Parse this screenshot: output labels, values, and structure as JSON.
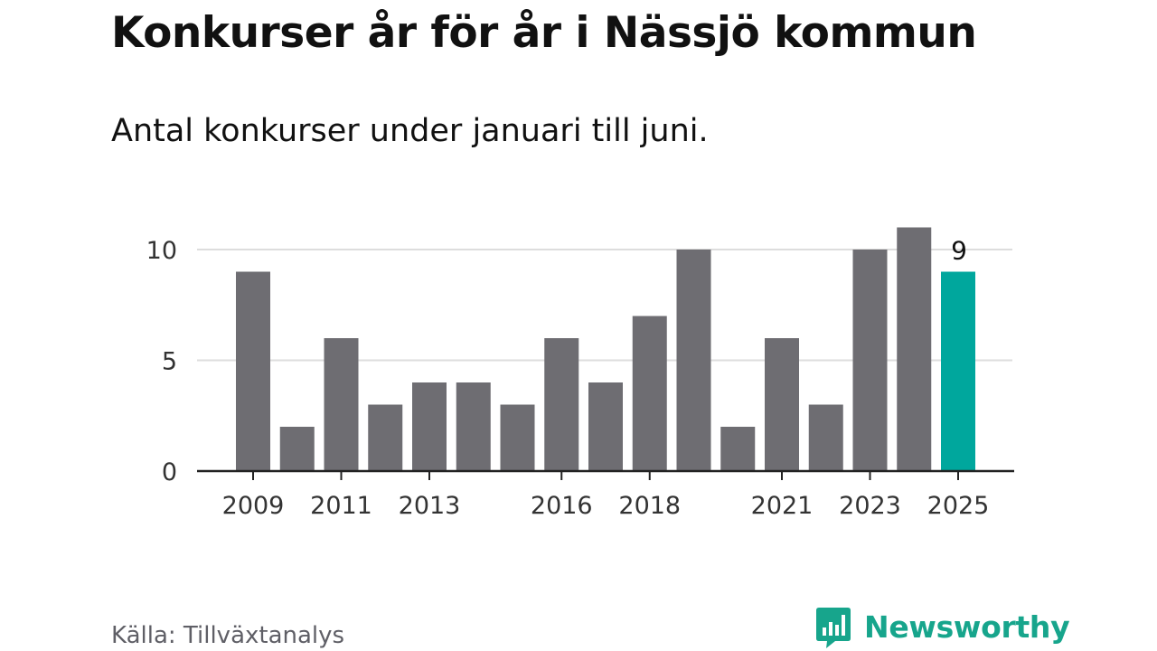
{
  "title": "Konkurser år för år i Nässjö kommun",
  "subtitle": "Antal konkurser under januari till juni.",
  "source": "Källa: Tillväxtanalys",
  "logo": {
    "text": "Newsworthy",
    "icon": "newsworthy-logo-icon"
  },
  "colors": {
    "bar": "#6e6d72",
    "highlight": "#00a79d",
    "grid": "#dddddd",
    "axis": "#222222",
    "text": "#111111",
    "tick_text": "#333333",
    "brand": "#17a58c"
  },
  "chart_data": {
    "type": "bar",
    "title": "Konkurser år för år i Nässjö kommun",
    "subtitle": "Antal konkurser under januari till juni.",
    "xlabel": "",
    "ylabel": "",
    "categories": [
      "2009",
      "2010",
      "2011",
      "2012",
      "2013",
      "2014",
      "2015",
      "2016",
      "2017",
      "2018",
      "2019",
      "2020",
      "2021",
      "2022",
      "2023",
      "2024",
      "2025"
    ],
    "values": [
      9,
      2,
      6,
      3,
      4,
      4,
      3,
      6,
      4,
      7,
      10,
      2,
      6,
      3,
      10,
      11,
      9
    ],
    "highlight_category": "2025",
    "data_labels": [
      {
        "category": "2025",
        "text": "9"
      }
    ],
    "x_tick_labels": [
      "2009",
      "2011",
      "2013",
      "2016",
      "2018",
      "2021",
      "2023",
      "2025"
    ],
    "y_ticks": [
      0,
      5,
      10
    ],
    "ylim": [
      0,
      11
    ],
    "grid": true,
    "legend": "none"
  }
}
